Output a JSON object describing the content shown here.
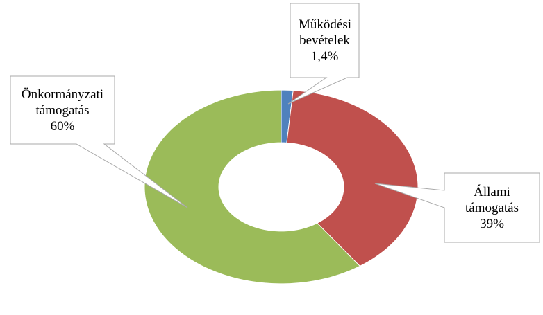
{
  "chart_data": {
    "type": "donut",
    "categories": [
      "Működési bevételek",
      "Állami támogatás",
      "Önkormányzati támogatás"
    ],
    "values": [
      1.4,
      39,
      60
    ],
    "value_labels": [
      "1,4%",
      "39%",
      "60%"
    ],
    "colors": [
      "#4f81bd",
      "#c0504d",
      "#9bbb59"
    ]
  }
}
